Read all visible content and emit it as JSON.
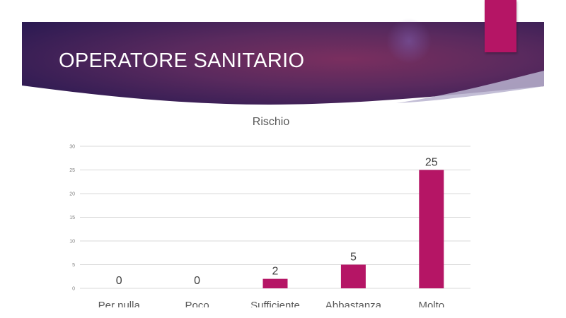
{
  "slide": {
    "title": "OPERATORE SANITARIO"
  },
  "colors": {
    "header_dark": "#2b1a52",
    "header_mid": "#6a2c5c",
    "accent": "#b51565",
    "bar": "#b51565",
    "gridline": "#d9d9d9",
    "text": "#595959"
  },
  "chart_data": {
    "type": "bar",
    "title": "Rischio",
    "xlabel": "",
    "ylabel": "",
    "categories": [
      "Per nulla",
      "Poco",
      "Sufficiente",
      "Abbastanza",
      "Molto"
    ],
    "values": [
      0,
      0,
      2,
      5,
      25
    ],
    "ylim": [
      0,
      30
    ],
    "yticks": [
      0,
      5,
      10,
      15,
      20,
      25,
      30
    ],
    "grid": true,
    "legend": "none",
    "data_labels": true
  }
}
